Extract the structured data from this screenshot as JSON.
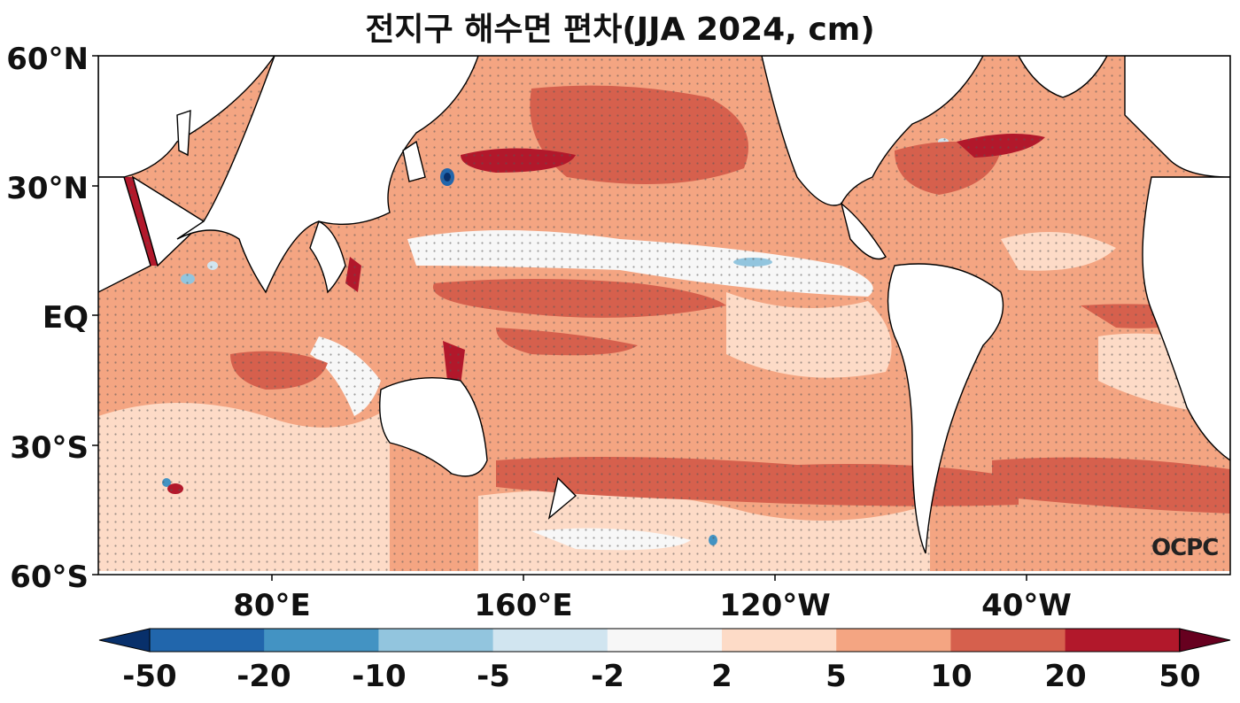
{
  "title": "전지구 해수면 편차(JJA 2024, cm)",
  "y_ticks": [
    "60°N",
    "30°N",
    "EQ",
    "30°S",
    "60°S"
  ],
  "x_ticks": [
    "80°E",
    "160°E",
    "120°W",
    "40°W"
  ],
  "colorbar": {
    "levels": [
      "-50",
      "-20",
      "-10",
      "-5",
      "-2",
      "2",
      "5",
      "10",
      "20",
      "50"
    ],
    "colors": [
      "#08306b",
      "#2166ac",
      "#4393c3",
      "#92c5de",
      "#d1e5f0",
      "#f7f7f7",
      "#fddbc7",
      "#f4a582",
      "#d6604d",
      "#b2182b",
      "#67001f"
    ]
  },
  "logo": "OCPC",
  "land_color": "#ffffff",
  "ocean_base_color": "#f4a582"
}
